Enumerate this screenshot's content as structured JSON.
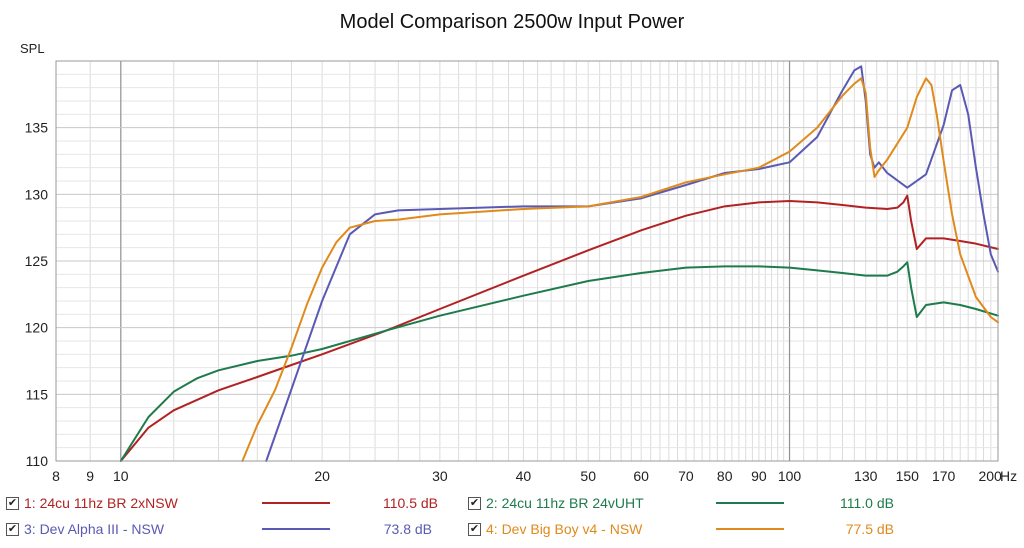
{
  "chart_data": {
    "type": "line",
    "title": "Model Comparison 2500w Input Power",
    "ylabel": "SPL",
    "xunit": "Hz",
    "xscale": "log",
    "xlim": [
      8,
      205
    ],
    "ylim": [
      110,
      140
    ],
    "yticks": [
      110,
      115,
      120,
      125,
      130,
      135
    ],
    "xticks": [
      {
        "value": 8,
        "label": "8"
      },
      {
        "value": 9,
        "label": "9"
      },
      {
        "value": 10,
        "label": "10"
      },
      {
        "value": 20,
        "label": "20"
      },
      {
        "value": 30,
        "label": "30"
      },
      {
        "value": 40,
        "label": "40"
      },
      {
        "value": 50,
        "label": "50"
      },
      {
        "value": 60,
        "label": "60"
      },
      {
        "value": 70,
        "label": "70"
      },
      {
        "value": 80,
        "label": "80"
      },
      {
        "value": 90,
        "label": "90"
      },
      {
        "value": 100,
        "label": "100"
      },
      {
        "value": 130,
        "label": "130"
      },
      {
        "value": 150,
        "label": "150"
      },
      {
        "value": 170,
        "label": "170"
      },
      {
        "value": 200,
        "label": "200"
      }
    ],
    "series": [
      {
        "name": "1: 24cu 11hz BR 2xNSW",
        "value_label": "110.5 dB",
        "color": "#b22222",
        "x": [
          10,
          11,
          12,
          14,
          16,
          18,
          20,
          25,
          30,
          40,
          50,
          60,
          70,
          80,
          90,
          100,
          110,
          120,
          130,
          140,
          145,
          148,
          150,
          152,
          155,
          160,
          170,
          180,
          190,
          205
        ],
        "y": [
          110,
          112.5,
          113.8,
          115.3,
          116.3,
          117.2,
          118,
          119.8,
          121.4,
          123.9,
          125.8,
          127.3,
          128.4,
          129.1,
          129.4,
          129.5,
          129.4,
          129.2,
          129,
          128.9,
          129,
          129.4,
          129.9,
          128,
          125.9,
          126.7,
          126.7,
          126.5,
          126.3,
          125.9
        ]
      },
      {
        "name": "2: 24cu 11hz BR 24vUHT",
        "value_label": "111.0 dB",
        "color": "#1e7b4b",
        "x": [
          10,
          11,
          12,
          13,
          14,
          16,
          18,
          20,
          25,
          30,
          40,
          50,
          60,
          70,
          80,
          90,
          100,
          110,
          120,
          130,
          140,
          145,
          148,
          150,
          152,
          155,
          160,
          170,
          180,
          190,
          205
        ],
        "y": [
          110,
          113.3,
          115.2,
          116.2,
          116.8,
          117.5,
          117.9,
          118.4,
          119.8,
          120.9,
          122.4,
          123.5,
          124.1,
          124.5,
          124.6,
          124.6,
          124.5,
          124.3,
          124.1,
          123.9,
          123.9,
          124.2,
          124.6,
          124.9,
          123,
          120.8,
          121.7,
          121.9,
          121.7,
          121.4,
          120.9
        ]
      },
      {
        "name": "3: Dev Alpha III - NSW",
        "value_label": "73.8 dB",
        "color": "#5a5ab4",
        "x": [
          16.5,
          18,
          20,
          22,
          24,
          26,
          30,
          40,
          50,
          60,
          70,
          80,
          90,
          100,
          110,
          120,
          125,
          128,
          130,
          132,
          134,
          136,
          140,
          150,
          160,
          170,
          175,
          180,
          185,
          190,
          195,
          200,
          205
        ],
        "y": [
          110,
          115.4,
          122,
          127,
          128.5,
          128.8,
          128.9,
          129.1,
          129.1,
          129.7,
          130.7,
          131.6,
          131.9,
          132.4,
          134.3,
          137.8,
          139.3,
          139.6,
          137,
          133,
          132,
          132.4,
          131.6,
          130.5,
          131.5,
          135.2,
          137.8,
          138.2,
          136,
          132,
          128.5,
          125.5,
          124.2
        ]
      },
      {
        "name": "4: Dev Big Boy v4 - NSW",
        "value_label": "77.5 dB",
        "color": "#e08a1c",
        "x": [
          15.2,
          16,
          17,
          18,
          19,
          20,
          21,
          22,
          24,
          26,
          30,
          40,
          50,
          60,
          70,
          80,
          90,
          100,
          110,
          120,
          125,
          128,
          130,
          132,
          134,
          136,
          140,
          150,
          155,
          160,
          163,
          166,
          170,
          175,
          180,
          190,
          200,
          205
        ],
        "y": [
          110,
          112.7,
          115.3,
          118.5,
          121.8,
          124.5,
          126.4,
          127.5,
          128,
          128.1,
          128.5,
          128.9,
          129.1,
          129.8,
          130.9,
          131.5,
          132,
          133.2,
          135,
          137.4,
          138.3,
          138.7,
          137.6,
          133.5,
          131.3,
          131.8,
          132.6,
          135,
          137.3,
          138.7,
          138.2,
          136,
          132.5,
          128.5,
          125.5,
          122.3,
          120.8,
          120.4
        ]
      }
    ]
  }
}
